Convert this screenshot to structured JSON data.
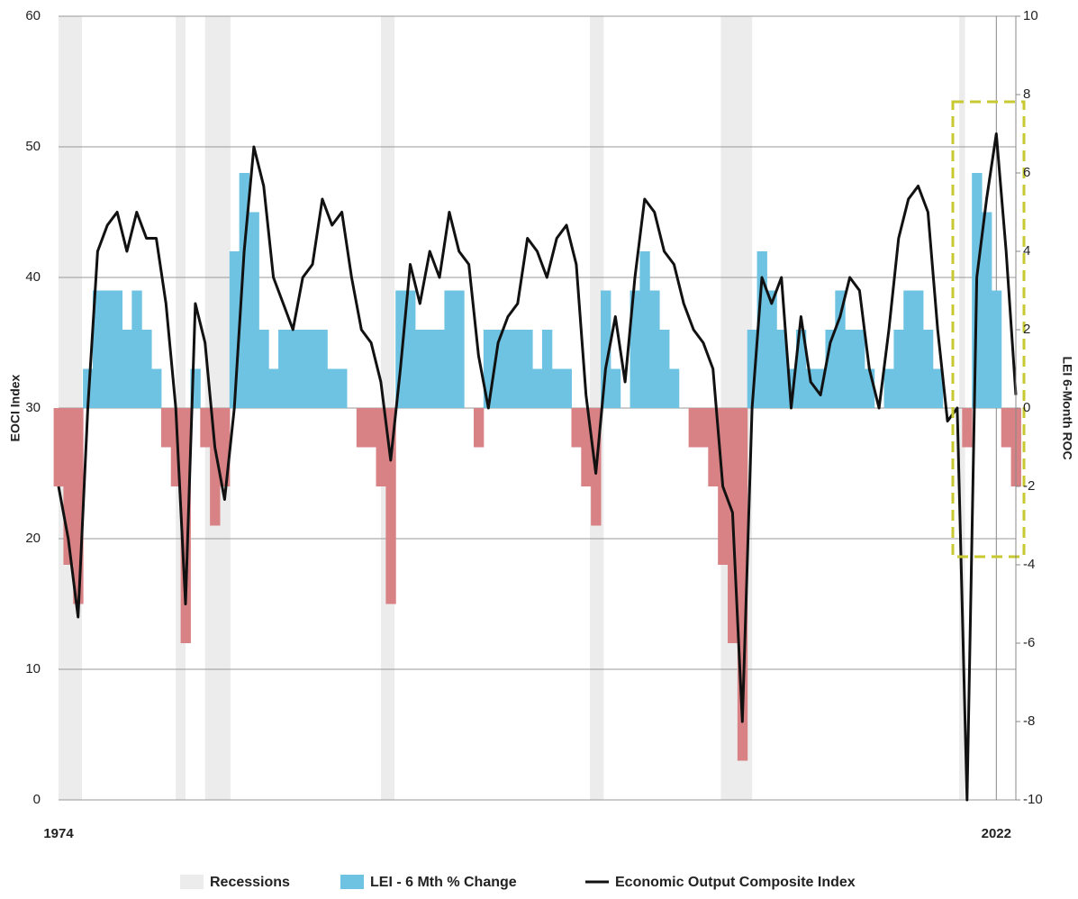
{
  "chart_data": {
    "type": "combo",
    "ylabel": "EOCI Index",
    "y2label": "LEI 6-Month ROC",
    "xlim": [
      1974,
      2023
    ],
    "xticks": [
      1974,
      2022
    ],
    "ylim": [
      0,
      60
    ],
    "yticks": [
      0,
      10,
      20,
      30,
      40,
      50,
      60
    ],
    "y2lim": [
      -10,
      10
    ],
    "y2ticks": [
      -10,
      -8,
      -6,
      -4,
      -2,
      0,
      2,
      4,
      6,
      8,
      10
    ],
    "grid": true,
    "x": [
      1974,
      1974.5,
      1975,
      1975.5,
      1976,
      1976.5,
      1977,
      1977.5,
      1978,
      1978.5,
      1979,
      1979.5,
      1980,
      1980.5,
      1981,
      1981.5,
      1982,
      1982.5,
      1983,
      1983.5,
      1984,
      1984.5,
      1985,
      1985.5,
      1986,
      1986.5,
      1987,
      1987.5,
      1988,
      1988.5,
      1989,
      1989.5,
      1990,
      1990.5,
      1991,
      1991.5,
      1992,
      1992.5,
      1993,
      1993.5,
      1994,
      1994.5,
      1995,
      1995.5,
      1996,
      1996.5,
      1997,
      1997.5,
      1998,
      1998.5,
      1999,
      1999.5,
      2000,
      2000.5,
      2001,
      2001.5,
      2002,
      2002.5,
      2003,
      2003.5,
      2004,
      2004.5,
      2005,
      2005.5,
      2006,
      2006.5,
      2007,
      2007.5,
      2008,
      2008.5,
      2009,
      2009.5,
      2010,
      2010.5,
      2011,
      2011.5,
      2012,
      2012.5,
      2013,
      2013.5,
      2014,
      2014.5,
      2015,
      2015.5,
      2016,
      2016.5,
      2017,
      2017.5,
      2018,
      2018.5,
      2019,
      2019.5,
      2020,
      2020.5,
      2021,
      2021.5,
      2022,
      2022.5,
      2023
    ],
    "series": [
      {
        "name": "Recessions",
        "type": "band",
        "color": "#ececec",
        "ranges": [
          [
            1974,
            1975.2
          ],
          [
            1980,
            1980.5
          ],
          [
            1981.5,
            1982.8
          ],
          [
            1990.5,
            1991.2
          ],
          [
            2001.2,
            2001.9
          ],
          [
            2007.9,
            2009.5
          ],
          [
            2020.1,
            2020.4
          ]
        ]
      },
      {
        "name": "LEI - 6 Mth % Change",
        "type": "bar",
        "axis": "y2",
        "color": "#6ec3e2",
        "negative_color": "#d98285",
        "values": [
          -2,
          -4,
          -5,
          1,
          3,
          3,
          3,
          2,
          3,
          2,
          1,
          -1,
          -2,
          -6,
          1,
          -1,
          -3,
          -2,
          4,
          6,
          5,
          2,
          1,
          2,
          2,
          2,
          2,
          2,
          1,
          1,
          0,
          -1,
          -1,
          -2,
          -5,
          3,
          3,
          2,
          2,
          2,
          3,
          3,
          0,
          -1,
          2,
          2,
          2,
          2,
          2,
          1,
          2,
          1,
          1,
          -1,
          -2,
          -3,
          3,
          1,
          0,
          3,
          4,
          3,
          2,
          1,
          0,
          -1,
          -1,
          -2,
          -4,
          -6,
          -9,
          2,
          4,
          3,
          2,
          1,
          2,
          1,
          1,
          2,
          3,
          2,
          2,
          1,
          0,
          1,
          2,
          3,
          3,
          2,
          1,
          0,
          0,
          -1,
          6,
          5,
          3,
          -1,
          -2
        ]
      },
      {
        "name": "Economic Output Composite Index",
        "type": "line",
        "color": "#111111",
        "values": [
          24,
          20,
          14,
          30,
          42,
          44,
          45,
          42,
          45,
          43,
          43,
          38,
          30,
          15,
          38,
          35,
          27,
          23,
          30,
          42,
          50,
          47,
          40,
          38,
          36,
          40,
          41,
          46,
          44,
          45,
          40,
          36,
          35,
          32,
          26,
          33,
          41,
          38,
          42,
          40,
          45,
          42,
          41,
          34,
          30,
          35,
          37,
          38,
          43,
          42,
          40,
          43,
          44,
          41,
          31,
          25,
          33,
          37,
          32,
          40,
          46,
          45,
          42,
          41,
          38,
          36,
          35,
          33,
          24,
          22,
          6,
          30,
          40,
          38,
          40,
          30,
          37,
          32,
          31,
          35,
          37,
          40,
          39,
          33,
          30,
          36,
          43,
          46,
          47,
          45,
          36,
          29,
          30,
          0,
          40,
          46,
          51,
          42,
          31
        ]
      }
    ]
  }
}
